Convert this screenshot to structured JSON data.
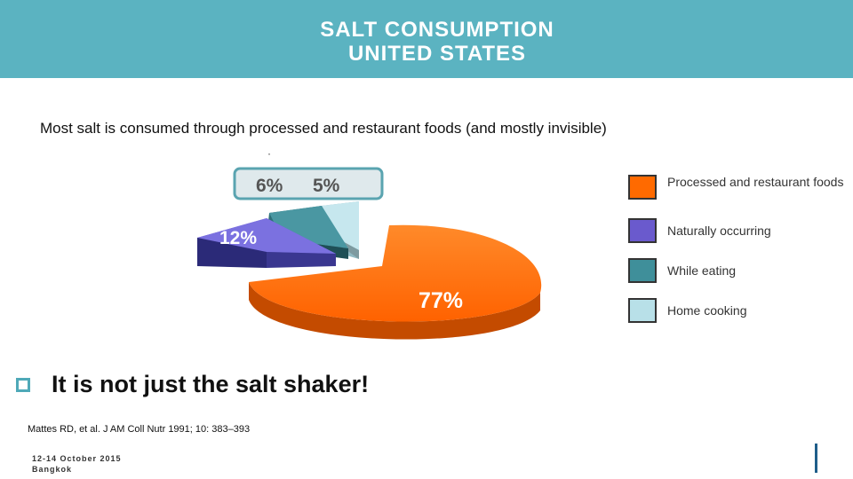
{
  "slide": {
    "title_line1": "SALT CONSUMPTION",
    "title_line2": "UNITED STATES",
    "subtitle": "Most salt is consumed through processed and  restaurant foods (and mostly invisible)",
    "callout": "It is not just the salt shaker!",
    "citation": "Mattes RD, et al. J AM Coll Nutr 1991; 10: 383–393",
    "footer_date": "12-14 October 2015",
    "footer_place": "Bangkok"
  },
  "chart_data": {
    "type": "pie",
    "title": "",
    "slices": [
      {
        "label": "Processed and restaurant foods",
        "value": 77,
        "value_label": "77%",
        "color": "#ff6a00"
      },
      {
        "label": "Naturally occurring",
        "value": 12,
        "value_label": "12%",
        "color": "#6a5acd"
      },
      {
        "label": "While eating",
        "value": 6,
        "value_label": "6%",
        "color": "#3f8f9a"
      },
      {
        "label": "Home cooking",
        "value": 5,
        "value_label": "5%",
        "color": "#b8e0e8"
      }
    ],
    "legend_position": "right",
    "style": "3d-exploded"
  }
}
